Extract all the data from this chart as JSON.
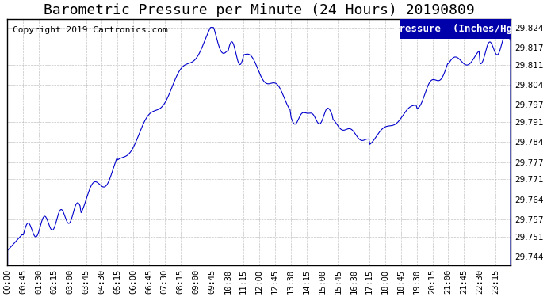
{
  "title": "Barometric Pressure per Minute (24 Hours) 20190809",
  "copyright_text": "Copyright 2019 Cartronics.com",
  "legend_text": "Pressure  (Inches/Hg)",
  "line_color": "#0000cc",
  "background_color": "#ffffff",
  "grid_color": "#aaaaaa",
  "yticks": [
    29.744,
    29.751,
    29.757,
    29.764,
    29.771,
    29.777,
    29.784,
    29.791,
    29.797,
    29.804,
    29.811,
    29.817,
    29.824
  ],
  "ymin": 29.741,
  "ymax": 29.827,
  "xtick_labels": [
    "00:00",
    "00:45",
    "01:30",
    "02:15",
    "03:00",
    "03:45",
    "04:30",
    "05:15",
    "06:00",
    "06:45",
    "07:30",
    "08:15",
    "09:00",
    "09:45",
    "10:30",
    "11:15",
    "12:00",
    "12:45",
    "13:30",
    "14:15",
    "15:00",
    "15:45",
    "16:30",
    "17:15",
    "18:00",
    "18:45",
    "19:30",
    "20:15",
    "21:00",
    "21:45",
    "22:30",
    "23:15"
  ],
  "title_fontsize": 13,
  "copyright_fontsize": 8,
  "tick_fontsize": 7.5,
  "legend_fontsize": 9
}
